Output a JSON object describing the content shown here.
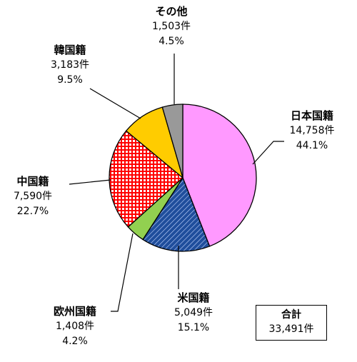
{
  "chart_data": {
    "type": "pie",
    "total_label": "合計",
    "total_value": "33,491件",
    "slices": [
      {
        "name": "日本国籍",
        "count": "14,758件",
        "percent": "44.1%",
        "value": 14758,
        "color": "#ff99ff",
        "pattern": "solid"
      },
      {
        "name": "米国籍",
        "count": "5,049件",
        "percent": "15.1%",
        "value": 5049,
        "color": "#1f4e9c",
        "pattern": "diagonal-hatch"
      },
      {
        "name": "欧州国籍",
        "count": "1,408件",
        "percent": "4.2%",
        "value": 1408,
        "color": "#92d050",
        "pattern": "solid"
      },
      {
        "name": "中国籍",
        "count": "7,590件",
        "percent": "22.7%",
        "value": 7590,
        "color": "#ff0000",
        "pattern": "grid"
      },
      {
        "name": "韓国籍",
        "count": "3,183件",
        "percent": "9.5%",
        "value": 3183,
        "color": "#ffcc00",
        "pattern": "solid"
      },
      {
        "name": "その他",
        "count": "1,503件",
        "percent": "4.5%",
        "value": 1503,
        "color": "#999999",
        "pattern": "solid"
      }
    ]
  }
}
